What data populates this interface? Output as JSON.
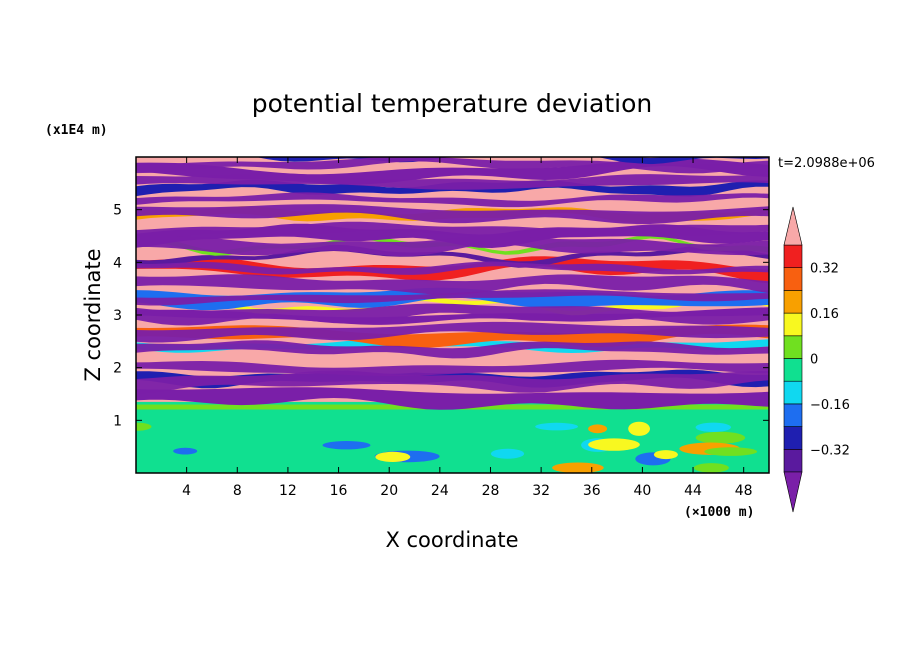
{
  "chart_data": {
    "type": "heatmap",
    "title": "potential temperature deviation",
    "xlabel": "X coordinate",
    "ylabel": "Z coordinate",
    "x_unit": "(×1000 m)",
    "y_unit": "(x1E4 m)",
    "time_label": "t=2.0988e+06",
    "xlim": [
      0,
      50
    ],
    "ylim": [
      0,
      6
    ],
    "x_ticks": [
      4,
      8,
      12,
      16,
      20,
      24,
      28,
      32,
      36,
      40,
      44,
      48
    ],
    "y_ticks": [
      1,
      2,
      3,
      4,
      5
    ],
    "colorbar": {
      "levels": [
        -0.4,
        -0.32,
        -0.24,
        -0.16,
        -0.08,
        0,
        0.08,
        0.16,
        0.24,
        0.32,
        0.4
      ],
      "labels": [
        "0.32",
        "0.16",
        "0",
        "−0.16",
        "−0.32"
      ],
      "label_values": [
        0.32,
        0.16,
        0,
        -0.16,
        -0.32
      ],
      "colors": [
        "#7a1fa8",
        "#5a1a9e",
        "#1f1fb0",
        "#1e6ef0",
        "#10d8f0",
        "#10e090",
        "#70e020",
        "#f8f820",
        "#f8a000",
        "#f86010",
        "#f02020",
        "#f8a8a8"
      ]
    }
  }
}
